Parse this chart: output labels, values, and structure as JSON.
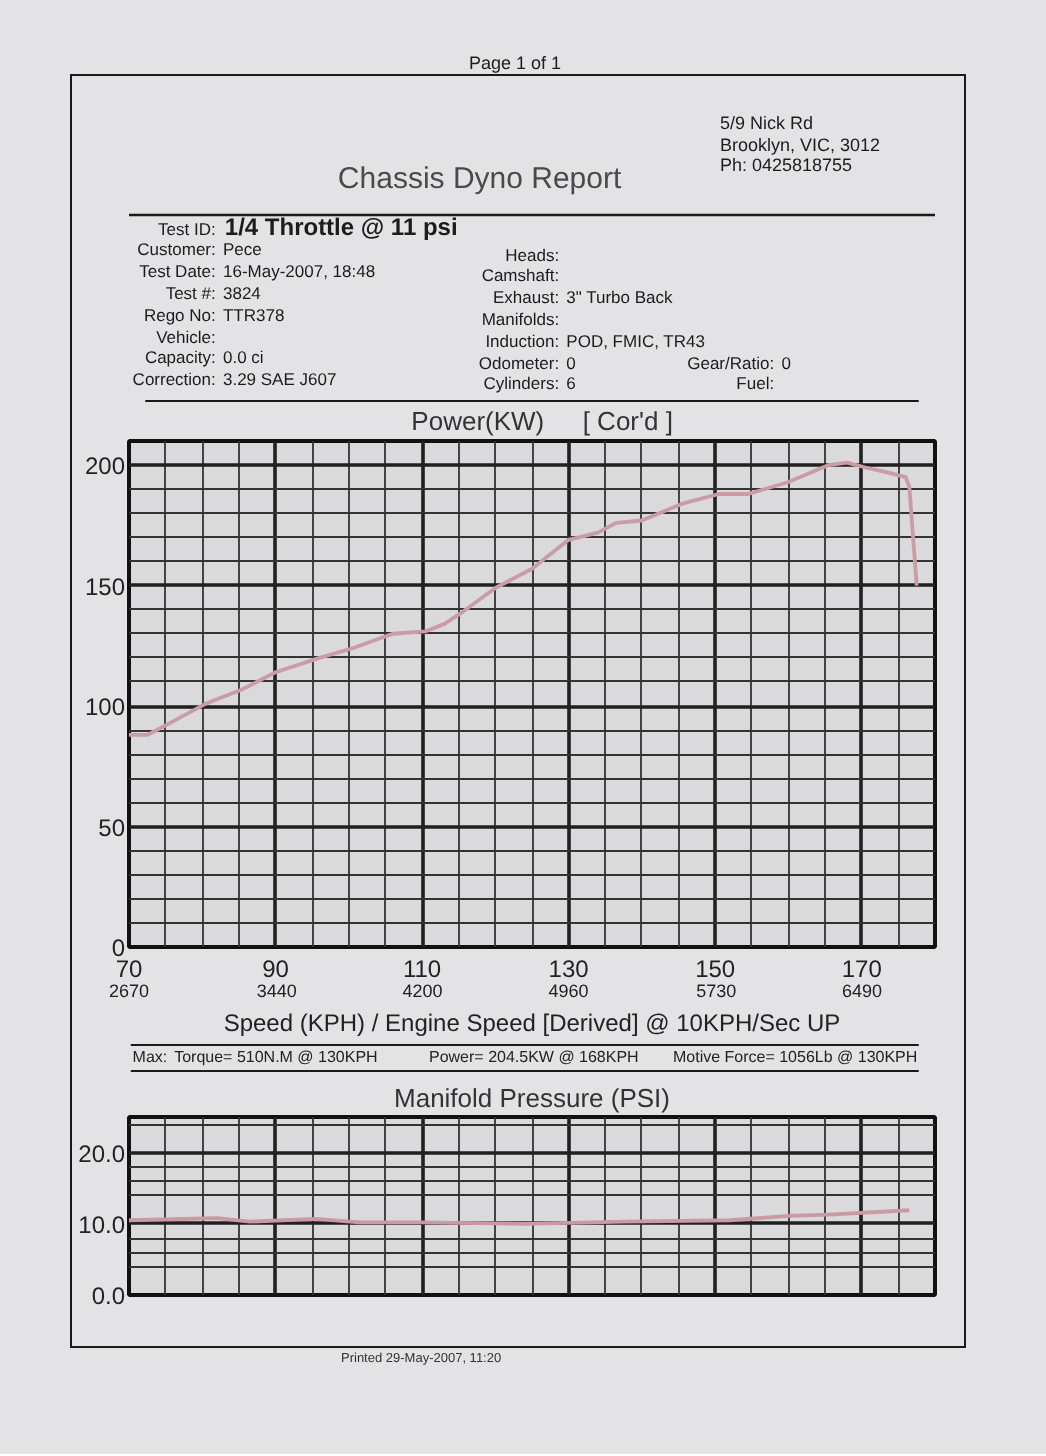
{
  "chart_data": [
    {
      "type": "other",
      "title": "Chassis Dyno Report",
      "annotations": [
        "Page 1 of 1",
        "5/9 Nick Rd",
        "Brooklyn, VIC, 3012",
        "Ph: 0425818755",
        "Test ID: 1/4 Throttle @ 11 psi",
        "Customer: Pece",
        "Test Date: 16-May-2007, 18:48",
        "Test #: 3824",
        "Rego No: TTR378",
        "Vehicle:",
        "Capacity: 0.0 ci",
        "Correction: 3.29 SAE J607",
        "Heads:",
        "Camshaft:",
        "Exhaust: 3\" Turbo Back",
        "Manifolds:",
        "Induction: POD, FMIC, TR43",
        "Odometer: 0",
        "Cylinders: 6",
        "Gear/Ratio: 0",
        "Fuel:",
        "Printed 29-May-2007, 11:20"
      ]
    },
    {
      "type": "line",
      "title": "Power(KW)",
      "subtitle": "[ Cor'd ]",
      "xlabel": "Speed (KPH) / Engine Speed [Derived] @ 10KPH/Sec UP",
      "x": [
        70,
        72.5,
        75,
        80.5,
        85.5,
        90,
        96,
        100.5,
        106,
        110.5,
        113,
        115.5,
        120,
        125,
        130,
        134,
        136.5,
        140,
        145.5,
        150.5,
        154.5,
        160,
        165.5,
        168,
        170.5,
        173.5,
        176,
        176.5,
        177.5
      ],
      "series": [
        {
          "color": "#c99ca6",
          "values": [
            88,
            88,
            92,
            101,
            107,
            114,
            120,
            124,
            130,
            131,
            134,
            139,
            149,
            157,
            169,
            172,
            176,
            177,
            184,
            188,
            188,
            193,
            200,
            201,
            199,
            197,
            195,
            191,
            150
          ]
        }
      ],
      "xlim": [
        70,
        180
      ],
      "xticks": [
        70,
        90,
        110,
        130,
        150,
        170
      ],
      "x2lim": [
        2670,
        6870
      ],
      "x2ticks": [
        2670,
        3440,
        4200,
        4960,
        5730,
        6490
      ],
      "ylim": [
        0,
        210
      ],
      "yticks": [
        0,
        50,
        100,
        150,
        200
      ],
      "grid": true,
      "annotations": [
        "Max:",
        "Torque= 510N.M @ 130KPH",
        "Power= 204.5KW @ 168KPH",
        "Motive Force= 1056Lb @ 130KPH"
      ]
    },
    {
      "type": "line",
      "title": "Manifold Pressure (PSI)",
      "x": [
        70,
        82,
        86.5,
        95.5,
        101.5,
        110,
        124,
        137.5,
        152,
        160,
        165.5,
        176.5
      ],
      "series": [
        {
          "color": "#c99aa4",
          "values": [
            10.5,
            10.8,
            10.3,
            10.7,
            10.2,
            10.2,
            10.0,
            10.3,
            10.5,
            11.1,
            11.3,
            11.9
          ]
        }
      ],
      "xlim": [
        70,
        180
      ],
      "xticks": [
        {
          "value": 70,
          "label": null
        },
        {
          "value": 90,
          "label": null
        },
        {
          "value": 110,
          "label": null
        },
        {
          "value": 130,
          "label": null
        },
        {
          "value": 150,
          "label": null
        },
        {
          "value": 170,
          "label": null
        }
      ],
      "ylim": [
        0,
        25
      ],
      "yticks": [
        {
          "value": 0,
          "label": "0.0"
        },
        {
          "value": 10,
          "label": "10.0"
        },
        {
          "value": 20,
          "label": "20.0"
        }
      ],
      "grid": true,
      "tick_labels": "y"
    }
  ]
}
